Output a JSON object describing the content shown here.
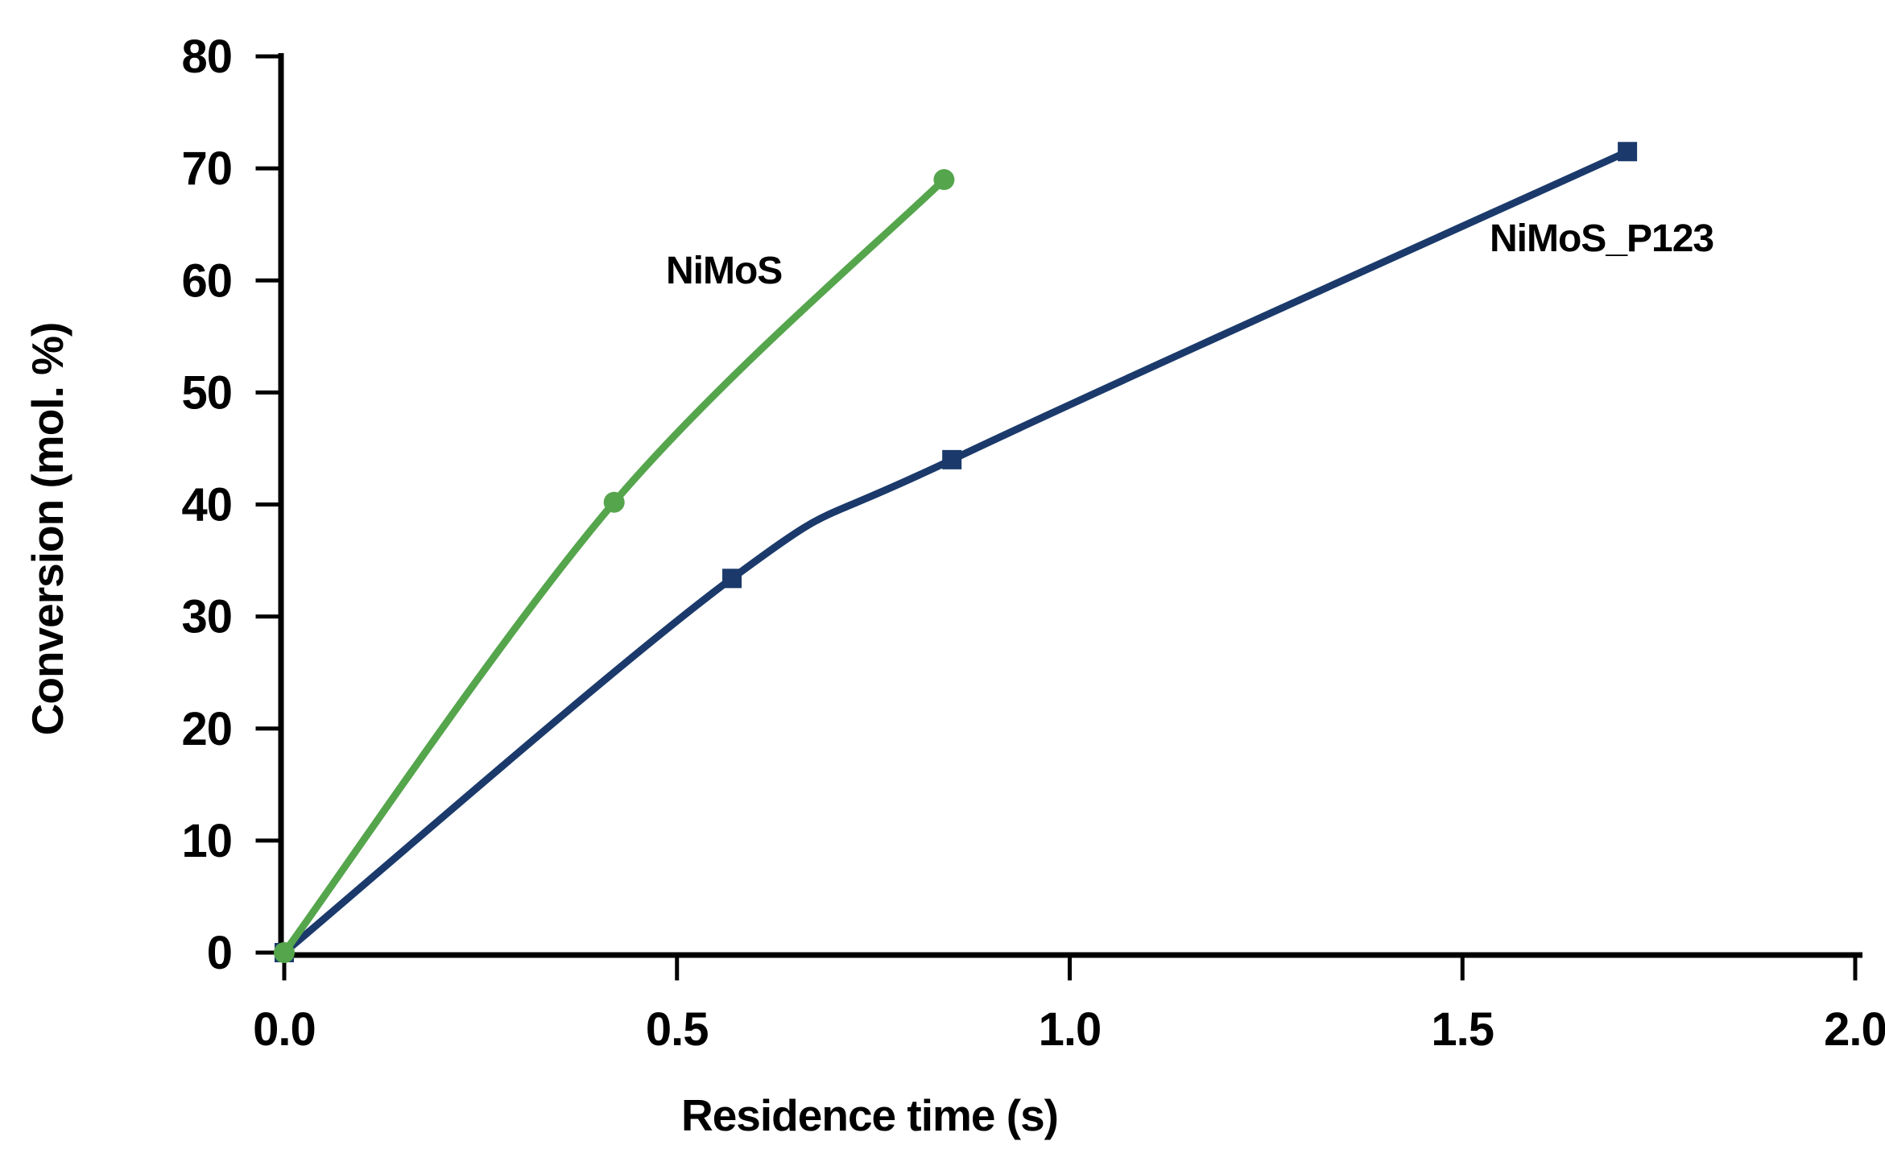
{
  "chart_data": {
    "type": "line",
    "title": "",
    "xlabel": "Residence time (s)",
    "ylabel": "Conversion (mol. %)",
    "xlim": [
      0.0,
      2.0
    ],
    "ylim": [
      0,
      80
    ],
    "grid": false,
    "legend_position": "inline-labels",
    "background_color": "#ffffff",
    "axis_color": "#000000",
    "x_ticks": [
      {
        "v": 0.0,
        "label": "0.0"
      },
      {
        "v": 0.5,
        "label": "0.5"
      },
      {
        "v": 1.0,
        "label": "1.0"
      },
      {
        "v": 1.5,
        "label": "1.5"
      },
      {
        "v": 2.0,
        "label": "2.0"
      }
    ],
    "y_ticks": [
      {
        "v": 0,
        "label": "0"
      },
      {
        "v": 10,
        "label": "10"
      },
      {
        "v": 20,
        "label": "20"
      },
      {
        "v": 30,
        "label": "30"
      },
      {
        "v": 40,
        "label": "40"
      },
      {
        "v": 50,
        "label": "50"
      },
      {
        "v": 60,
        "label": "60"
      },
      {
        "v": 70,
        "label": "70"
      },
      {
        "v": 80,
        "label": "80"
      }
    ],
    "series": [
      {
        "name": "NiMoS_P123",
        "color": "#1b3a6b",
        "marker": "square",
        "points": [
          [
            0.0,
            0.0
          ],
          [
            0.57,
            33.4
          ],
          [
            0.85,
            44.0
          ],
          [
            1.71,
            71.5
          ]
        ]
      },
      {
        "name": "NiMoS",
        "color": "#55a54c",
        "marker": "circle",
        "points": [
          [
            0.0,
            0.0
          ],
          [
            0.42,
            40.2
          ],
          [
            0.84,
            69.0
          ]
        ]
      }
    ]
  }
}
